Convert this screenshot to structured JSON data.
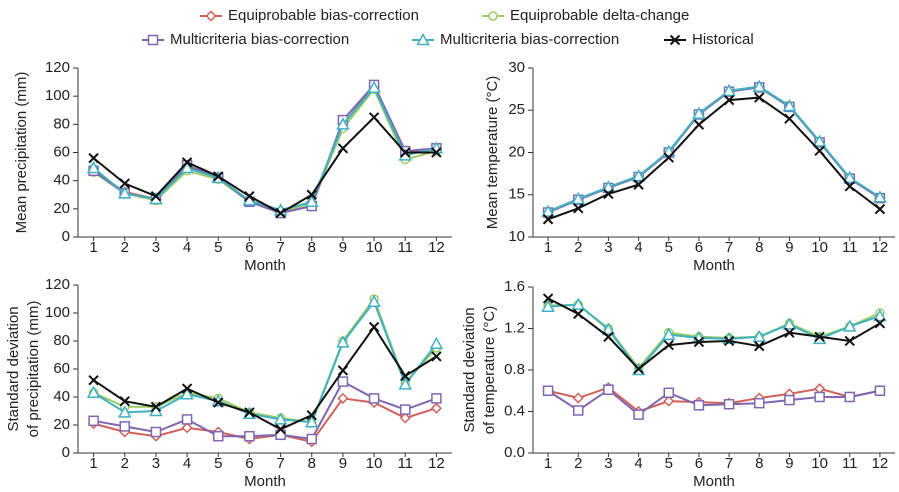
{
  "chart_data": [
    {
      "type": "line",
      "ylabel": [
        "Mean precipitation (mm)"
      ],
      "xlabel": "Month",
      "categories": [
        "1",
        "2",
        "3",
        "4",
        "5",
        "6",
        "7",
        "8",
        "9",
        "10",
        "11",
        "12"
      ],
      "ylim": [
        0,
        120
      ],
      "yticks": [
        0,
        20,
        40,
        60,
        80,
        100,
        120
      ],
      "series": [
        {
          "name": "Equiprobable bias-correction",
          "color": "#d0605a",
          "marker": "diamond",
          "values": [
            47,
            32,
            27,
            50,
            42,
            26,
            17,
            22,
            80,
            107,
            60,
            62
          ]
        },
        {
          "name": "Equiprobable delta-change",
          "color": "#9ccb62",
          "marker": "circle",
          "values": [
            46,
            31,
            26,
            47,
            41,
            25,
            18,
            24,
            77,
            105,
            55,
            61
          ]
        },
        {
          "name": "Multicriteria bias-correction",
          "color": "#8066b0",
          "marker": "square",
          "values": [
            47,
            31,
            27,
            51,
            42,
            25,
            17,
            22,
            83,
            108,
            61,
            63
          ]
        },
        {
          "name": "Multicriteria bias-correction",
          "color": "#3fb1c2",
          "marker": "triangle",
          "values": [
            49,
            31,
            27,
            49,
            42,
            26,
            19,
            25,
            80,
            106,
            58,
            63
          ]
        },
        {
          "name": "Historical",
          "color": "#111111",
          "marker": "x",
          "values": [
            56,
            38,
            29,
            53,
            43,
            29,
            17,
            30,
            63,
            85,
            60,
            60
          ]
        }
      ]
    },
    {
      "type": "line",
      "ylabel": [
        "Mean temperature (°C)"
      ],
      "xlabel": "Month",
      "categories": [
        "1",
        "2",
        "3",
        "4",
        "5",
        "6",
        "7",
        "8",
        "9",
        "10",
        "11",
        "12"
      ],
      "ylim": [
        10,
        30
      ],
      "yticks": [
        10,
        15,
        20,
        25,
        30
      ],
      "series": [
        {
          "name": "Equiprobable bias-correction",
          "color": "#d0605a",
          "marker": "diamond",
          "values": [
            13.0,
            14.5,
            15.9,
            17.2,
            20.1,
            24.6,
            27.3,
            27.8,
            25.5,
            21.3,
            17.0,
            14.7
          ]
        },
        {
          "name": "Equiprobable delta-change",
          "color": "#9ccb62",
          "marker": "circle",
          "values": [
            13.0,
            14.5,
            15.9,
            17.2,
            20.1,
            24.6,
            27.3,
            27.8,
            25.5,
            21.3,
            17.0,
            14.7
          ]
        },
        {
          "name": "Multicriteria bias-correction",
          "color": "#8066b0",
          "marker": "square",
          "values": [
            12.9,
            14.4,
            15.8,
            17.1,
            20.0,
            24.5,
            27.2,
            27.7,
            25.4,
            21.2,
            16.9,
            14.6
          ]
        },
        {
          "name": "Multicriteria bias-correction",
          "color": "#3fb1c2",
          "marker": "triangle",
          "values": [
            13.0,
            14.5,
            15.9,
            17.2,
            20.1,
            24.6,
            27.3,
            27.8,
            25.5,
            21.3,
            17.0,
            14.7
          ]
        },
        {
          "name": "Historical",
          "color": "#111111",
          "marker": "x",
          "values": [
            12.1,
            13.4,
            15.1,
            16.2,
            19.4,
            23.3,
            26.2,
            26.5,
            24.0,
            20.2,
            16.0,
            13.3
          ]
        }
      ]
    },
    {
      "type": "line",
      "ylabel": [
        "Standard deviation",
        "of precipitation (mm)"
      ],
      "xlabel": "Month",
      "categories": [
        "1",
        "2",
        "3",
        "4",
        "5",
        "6",
        "7",
        "8",
        "9",
        "10",
        "11",
        "12"
      ],
      "ylim": [
        0,
        120
      ],
      "yticks": [
        0,
        20,
        40,
        60,
        80,
        100,
        120
      ],
      "series": [
        {
          "name": "Equiprobable bias-correction",
          "color": "#d0605a",
          "marker": "diamond",
          "values": [
            21,
            15,
            12,
            18,
            15,
            10,
            13,
            8,
            39,
            36,
            25,
            32
          ]
        },
        {
          "name": "Equiprobable delta-change",
          "color": "#9ccb62",
          "marker": "circle",
          "values": [
            43,
            33,
            33,
            43,
            39,
            29,
            25,
            22,
            80,
            110,
            50,
            75
          ]
        },
        {
          "name": "Multicriteria bias-correction",
          "color": "#8066b0",
          "marker": "square",
          "values": [
            23,
            19,
            15,
            24,
            12,
            12,
            13,
            10,
            51,
            39,
            31,
            39
          ]
        },
        {
          "name": "Multicriteria bias-correction",
          "color": "#3fb1c2",
          "marker": "triangle",
          "values": [
            43,
            29,
            30,
            42,
            37,
            28,
            24,
            22,
            79,
            108,
            49,
            78
          ]
        },
        {
          "name": "Historical",
          "color": "#111111",
          "marker": "x",
          "values": [
            52,
            37,
            33,
            46,
            36,
            29,
            17,
            27,
            59,
            90,
            55,
            69
          ]
        }
      ]
    },
    {
      "type": "line",
      "ylabel": [
        "Standard deviation",
        "of temperature (°C)"
      ],
      "xlabel": "Month",
      "categories": [
        "1",
        "2",
        "3",
        "4",
        "5",
        "6",
        "7",
        "8",
        "9",
        "10",
        "11",
        "12"
      ],
      "ylim": [
        0,
        1.6
      ],
      "yticks": [
        {
          "value": 0,
          "label": "0.0"
        },
        0.4,
        0.8,
        1.2,
        1.6
      ],
      "series": [
        {
          "name": "Equiprobable bias-correction",
          "color": "#d0605a",
          "marker": "diamond",
          "values": [
            0.6,
            0.53,
            0.63,
            0.4,
            0.5,
            0.49,
            0.48,
            0.53,
            0.57,
            0.62,
            0.54,
            0.6
          ]
        },
        {
          "name": "Equiprobable delta-change",
          "color": "#9ccb62",
          "marker": "circle",
          "values": [
            1.42,
            1.43,
            1.2,
            0.82,
            1.16,
            1.12,
            1.11,
            1.12,
            1.25,
            1.12,
            1.22,
            1.35
          ]
        },
        {
          "name": "Multicriteria bias-correction",
          "color": "#8066b0",
          "marker": "square",
          "values": [
            0.6,
            0.41,
            0.61,
            0.37,
            0.58,
            0.46,
            0.47,
            0.48,
            0.51,
            0.54,
            0.54,
            0.6
          ]
        },
        {
          "name": "Multicriteria bias-correction",
          "color": "#3fb1c2",
          "marker": "triangle",
          "values": [
            1.41,
            1.43,
            1.19,
            0.8,
            1.14,
            1.11,
            1.1,
            1.12,
            1.24,
            1.1,
            1.22,
            1.32
          ]
        },
        {
          "name": "Historical",
          "color": "#111111",
          "marker": "x",
          "values": [
            1.49,
            1.34,
            1.12,
            0.81,
            1.04,
            1.07,
            1.08,
            1.03,
            1.16,
            1.12,
            1.08,
            1.25
          ]
        }
      ]
    }
  ]
}
